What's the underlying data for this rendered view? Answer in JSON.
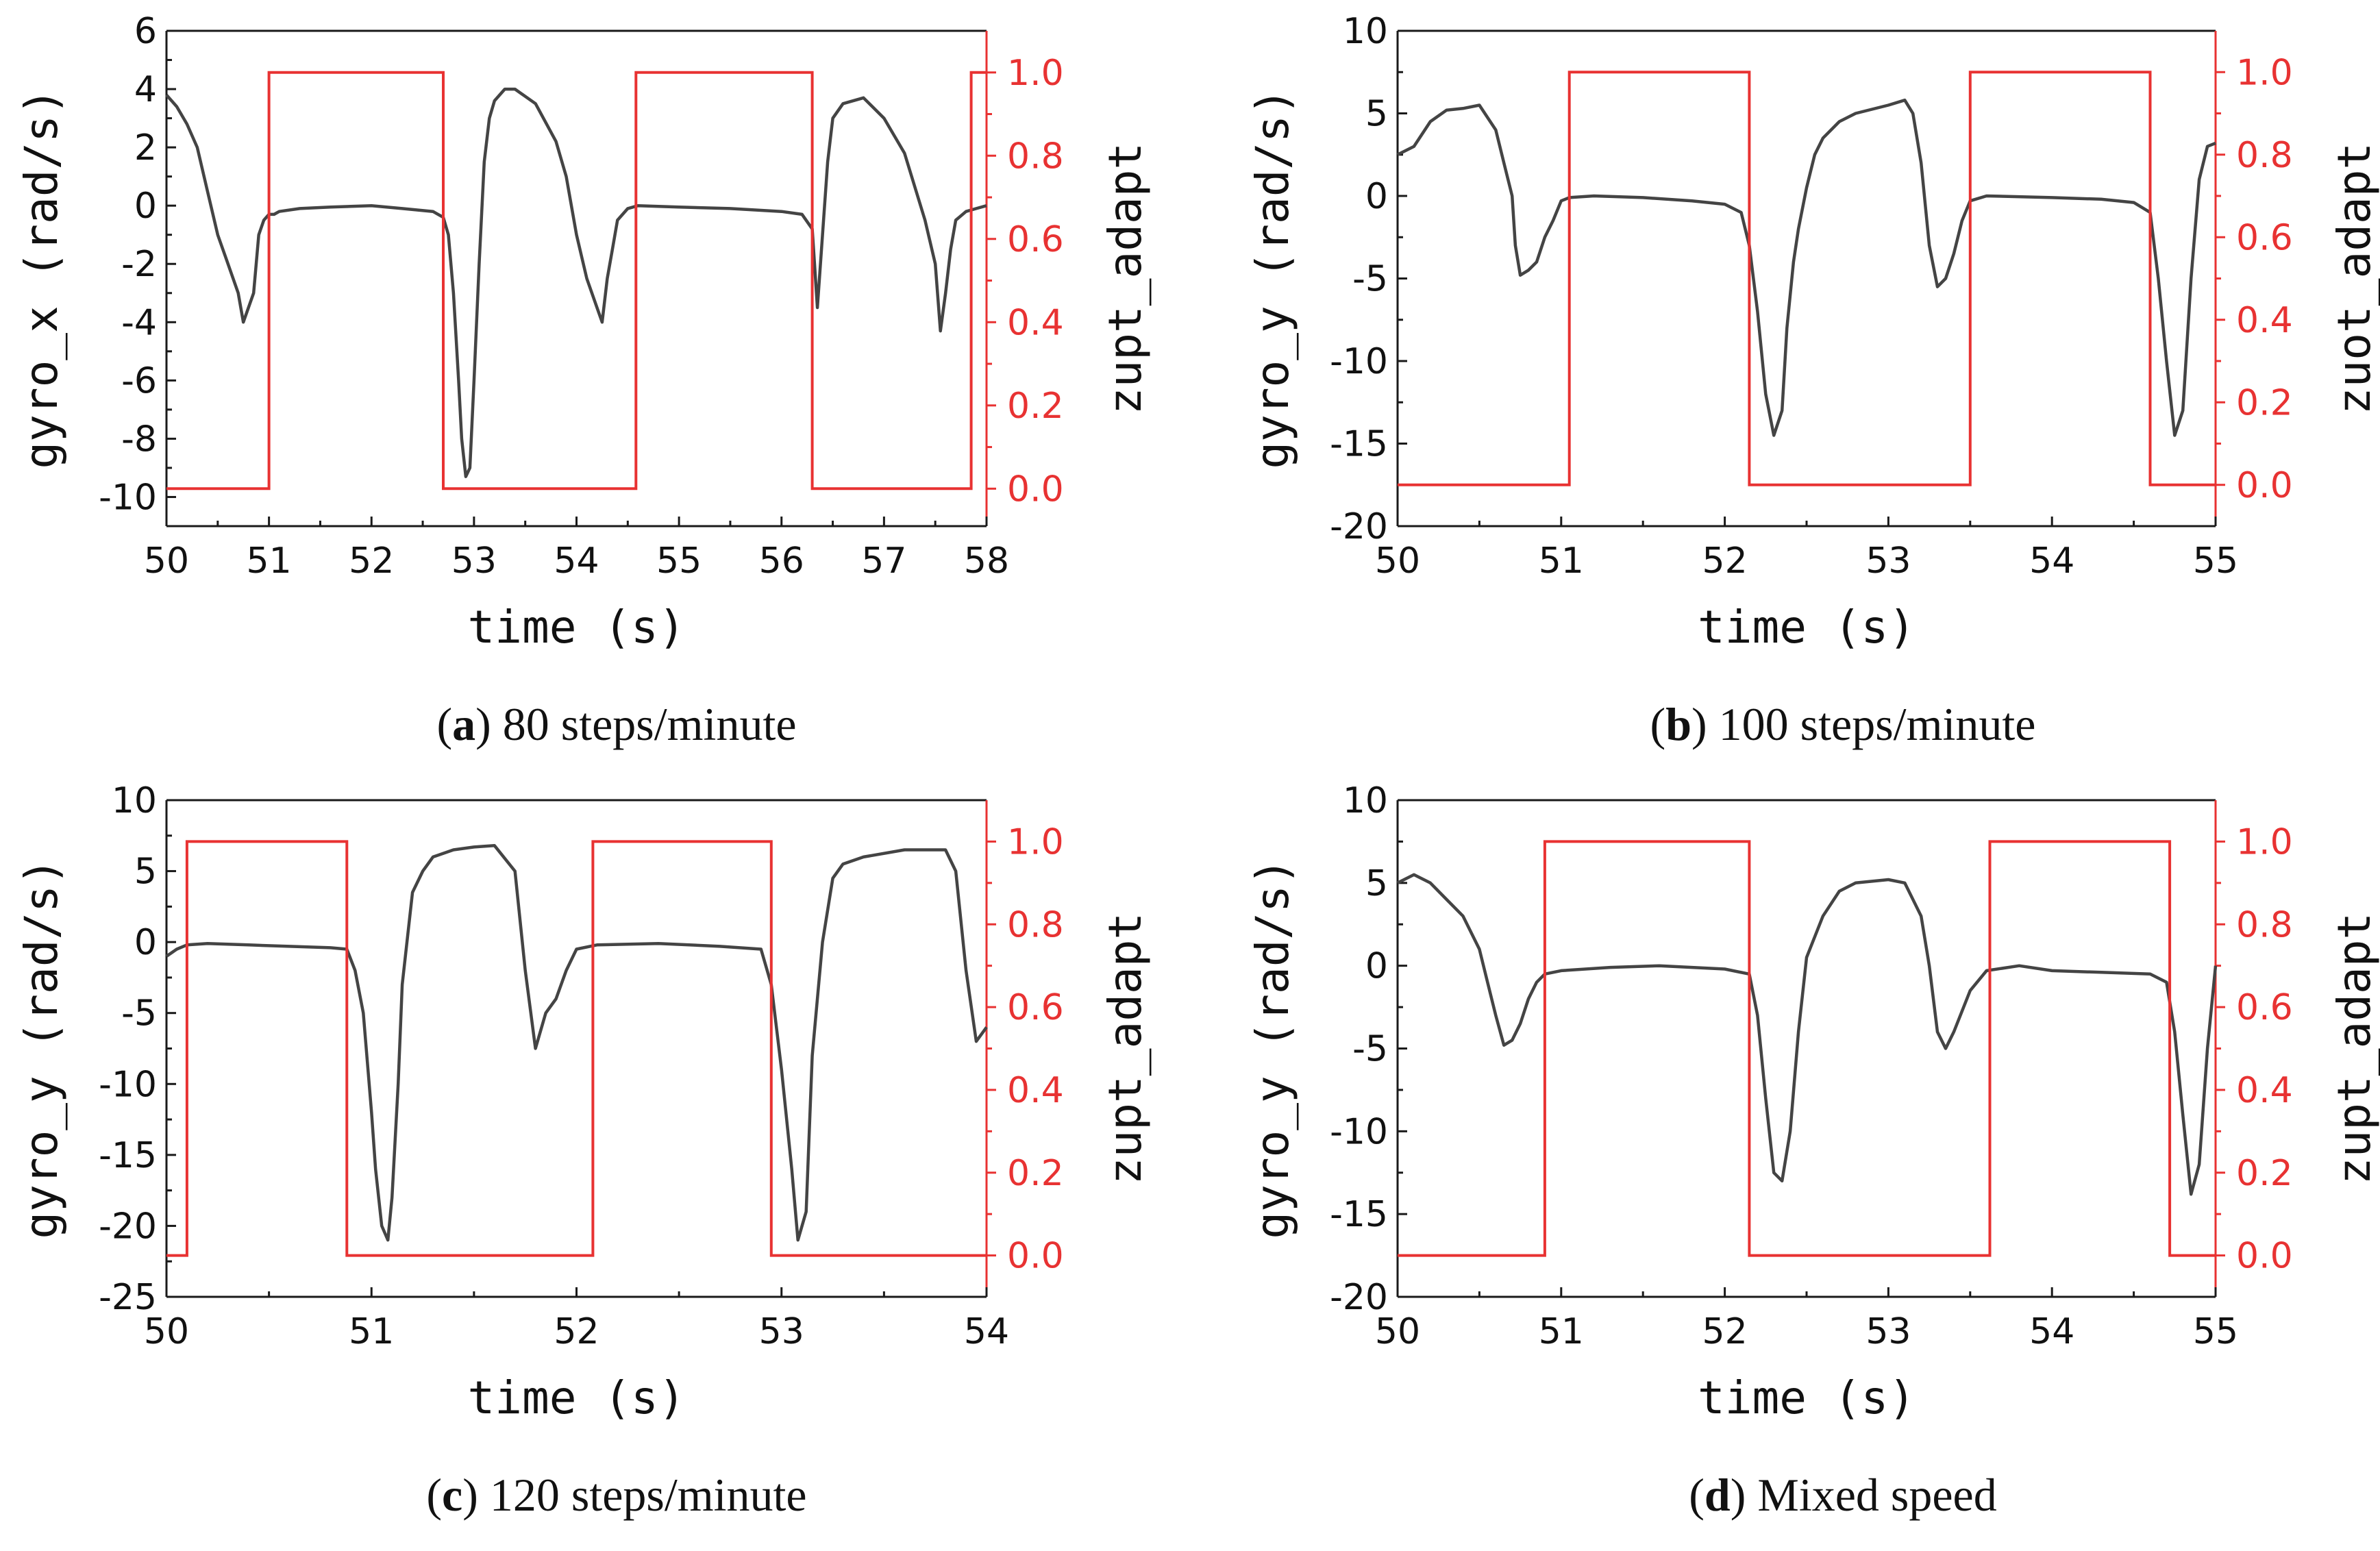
{
  "colors": {
    "gyro": "#444444",
    "zupt": "#e83232",
    "axis": "#1a1a1a"
  },
  "chart_data": [
    {
      "id": "a",
      "type": "line",
      "caption_letter": "a",
      "caption_text": "80 steps/minute",
      "xlabel": "time (s)",
      "ylabel_left": "gyro_x (rad/s)",
      "ylabel_right": "zupt_adapt",
      "xlim": [
        50,
        58
      ],
      "ylim_left": [
        -11,
        6
      ],
      "ylim_right": [
        -0.09,
        1.1
      ],
      "xticks": [
        50,
        51,
        52,
        53,
        54,
        55,
        56,
        57,
        58
      ],
      "yticks_left": [
        6,
        4,
        2,
        0,
        -2,
        -4,
        -6,
        -8,
        -10
      ],
      "yticks_right": [
        0.0,
        0.2,
        0.4,
        0.6,
        0.8,
        1.0
      ],
      "yticks_right_labels": [
        "0.0",
        "0.2",
        "0.4",
        "0.6",
        "0.8",
        "1.0"
      ],
      "series": [
        {
          "name": "gyro_x",
          "axis": "left",
          "x": [
            50.0,
            50.1,
            50.2,
            50.3,
            50.4,
            50.5,
            50.6,
            50.7,
            50.75,
            50.8,
            50.85,
            50.9,
            50.95,
            51.0,
            51.05,
            51.1,
            51.3,
            51.6,
            52.0,
            52.3,
            52.6,
            52.7,
            52.75,
            52.8,
            52.85,
            52.88,
            52.92,
            52.96,
            53.0,
            53.05,
            53.1,
            53.15,
            53.2,
            53.3,
            53.4,
            53.6,
            53.8,
            53.9,
            54.0,
            54.1,
            54.2,
            54.25,
            54.3,
            54.35,
            54.4,
            54.5,
            54.6,
            55.0,
            55.5,
            56.0,
            56.2,
            56.3,
            56.35,
            56.4,
            56.45,
            56.5,
            56.6,
            56.8,
            57.0,
            57.2,
            57.4,
            57.5,
            57.55,
            57.6,
            57.65,
            57.7,
            57.8,
            57.9,
            58.0
          ],
          "y": [
            3.8,
            3.4,
            2.8,
            2.0,
            0.5,
            -1.0,
            -2.0,
            -3.0,
            -4.0,
            -3.5,
            -3.0,
            -1.0,
            -0.5,
            -0.3,
            -0.3,
            -0.2,
            -0.1,
            -0.05,
            0.0,
            -0.1,
            -0.2,
            -0.4,
            -1.0,
            -3.0,
            -6.0,
            -8.0,
            -9.3,
            -9.0,
            -6.0,
            -2.0,
            1.5,
            3.0,
            3.6,
            4.0,
            4.0,
            3.5,
            2.2,
            1.0,
            -1.0,
            -2.5,
            -3.5,
            -4.0,
            -2.5,
            -1.5,
            -0.5,
            -0.1,
            0.0,
            -0.05,
            -0.1,
            -0.2,
            -0.3,
            -0.8,
            -3.5,
            -1.0,
            1.5,
            3.0,
            3.5,
            3.7,
            3.0,
            1.8,
            -0.5,
            -2.0,
            -4.3,
            -3.0,
            -1.5,
            -0.5,
            -0.2,
            -0.1,
            0.0
          ]
        },
        {
          "name": "zupt_adapt",
          "axis": "right",
          "step": true,
          "x": [
            50.0,
            51.0,
            51.0,
            52.7,
            52.7,
            54.58,
            54.58,
            56.3,
            56.3,
            57.85,
            57.85,
            58.0
          ],
          "y": [
            0,
            0,
            1,
            1,
            0,
            0,
            1,
            1,
            0,
            0,
            1,
            1
          ]
        }
      ]
    },
    {
      "id": "b",
      "type": "line",
      "caption_letter": "b",
      "caption_text": "100 steps/minute",
      "xlabel": "time (s)",
      "ylabel_left": "gyro_y (rad/s)",
      "ylabel_right": "zuot_adapt",
      "xlim": [
        50,
        55
      ],
      "ylim_left": [
        -20,
        10
      ],
      "ylim_right": [
        -0.1,
        1.1
      ],
      "xticks": [
        50,
        51,
        52,
        53,
        54,
        55
      ],
      "yticks_left": [
        10,
        5,
        0,
        -5,
        -10,
        -15,
        -20
      ],
      "yticks_right": [
        0.0,
        0.2,
        0.4,
        0.6,
        0.8,
        1.0
      ],
      "yticks_right_labels": [
        "0.0",
        "0.2",
        "0.4",
        "0.6",
        "0.8",
        "1.0"
      ],
      "series": [
        {
          "name": "gyro_y",
          "axis": "left",
          "x": [
            50.0,
            50.1,
            50.2,
            50.3,
            50.4,
            50.5,
            50.6,
            50.65,
            50.7,
            50.72,
            50.75,
            50.8,
            50.85,
            50.9,
            50.95,
            51.0,
            51.05,
            51.2,
            51.5,
            51.8,
            52.0,
            52.1,
            52.15,
            52.2,
            52.25,
            52.3,
            52.35,
            52.38,
            52.42,
            52.45,
            52.5,
            52.55,
            52.6,
            52.7,
            52.8,
            53.0,
            53.1,
            53.15,
            53.2,
            53.25,
            53.3,
            53.35,
            53.4,
            53.45,
            53.5,
            53.6,
            54.0,
            54.3,
            54.5,
            54.6,
            54.65,
            54.7,
            54.75,
            54.8,
            54.85,
            54.9,
            54.95,
            55.0
          ],
          "y": [
            2.5,
            3.0,
            4.5,
            5.2,
            5.3,
            5.5,
            4.0,
            2.0,
            0.0,
            -3.0,
            -4.8,
            -4.5,
            -4.0,
            -2.5,
            -1.5,
            -0.3,
            -0.1,
            0.0,
            -0.1,
            -0.3,
            -0.5,
            -1.0,
            -3.0,
            -7.0,
            -12.0,
            -14.5,
            -13.0,
            -8.0,
            -4.0,
            -2.0,
            0.5,
            2.5,
            3.5,
            4.5,
            5.0,
            5.5,
            5.8,
            5.0,
            2.0,
            -3.0,
            -5.5,
            -5.0,
            -3.5,
            -1.5,
            -0.3,
            0.0,
            -0.1,
            -0.2,
            -0.4,
            -1.0,
            -5.0,
            -10.0,
            -14.5,
            -13.0,
            -5.0,
            1.0,
            3.0,
            3.2
          ]
        },
        {
          "name": "zuot_adapt",
          "axis": "right",
          "step": true,
          "x": [
            50.0,
            51.05,
            51.05,
            52.15,
            52.15,
            53.5,
            53.5,
            54.6,
            54.6,
            55.0
          ],
          "y": [
            0,
            0,
            1,
            1,
            0,
            0,
            1,
            1,
            0,
            0
          ]
        }
      ]
    },
    {
      "id": "c",
      "type": "line",
      "caption_letter": "c",
      "caption_text": "120 steps/minute",
      "xlabel": "time (s)",
      "ylabel_left": "gyro_y (rad/s)",
      "ylabel_right": "zupt_adapt",
      "xlim": [
        50,
        54
      ],
      "ylim_left": [
        -25,
        10
      ],
      "ylim_right": [
        -0.1,
        1.1
      ],
      "xticks": [
        50,
        51,
        52,
        53,
        54
      ],
      "yticks_left": [
        10,
        5,
        0,
        -5,
        -10,
        -15,
        -20,
        -25
      ],
      "yticks_right": [
        0.0,
        0.2,
        0.4,
        0.6,
        0.8,
        1.0
      ],
      "yticks_right_labels": [
        "0.0",
        "0.2",
        "0.4",
        "0.6",
        "0.8",
        "1.0"
      ],
      "series": [
        {
          "name": "gyro_y",
          "axis": "left",
          "x": [
            50.0,
            50.05,
            50.1,
            50.2,
            50.4,
            50.6,
            50.8,
            50.88,
            50.92,
            50.96,
            51.0,
            51.02,
            51.05,
            51.08,
            51.1,
            51.13,
            51.15,
            51.2,
            51.25,
            51.3,
            51.4,
            51.5,
            51.6,
            51.7,
            51.75,
            51.8,
            51.85,
            51.9,
            51.95,
            52.0,
            52.1,
            52.4,
            52.7,
            52.9,
            52.95,
            53.0,
            53.05,
            53.08,
            53.12,
            53.15,
            53.2,
            53.25,
            53.3,
            53.4,
            53.6,
            53.8,
            53.85,
            53.9,
            53.95,
            54.0
          ],
          "y": [
            -1.0,
            -0.5,
            -0.2,
            -0.1,
            -0.2,
            -0.3,
            -0.4,
            -0.5,
            -2.0,
            -5.0,
            -12.0,
            -16.0,
            -20.0,
            -21.0,
            -18.0,
            -10.0,
            -3.0,
            3.5,
            5.0,
            6.0,
            6.5,
            6.7,
            6.8,
            5.0,
            -2.0,
            -7.5,
            -5.0,
            -4.0,
            -2.0,
            -0.5,
            -0.2,
            -0.1,
            -0.3,
            -0.5,
            -3.0,
            -9.0,
            -16.0,
            -21.0,
            -19.0,
            -8.0,
            0.0,
            4.5,
            5.5,
            6.0,
            6.5,
            6.5,
            5.0,
            -2.0,
            -7.0,
            -6.0
          ]
        },
        {
          "name": "zupt_adapt",
          "axis": "right",
          "step": true,
          "x": [
            50.0,
            50.1,
            50.1,
            50.88,
            50.88,
            52.08,
            52.08,
            52.95,
            52.95,
            54.0
          ],
          "y": [
            0,
            0,
            1,
            1,
            0,
            0,
            1,
            1,
            0,
            0
          ]
        }
      ]
    },
    {
      "id": "d",
      "type": "line",
      "caption_letter": "d",
      "caption_text": "Mixed speed",
      "xlabel": "time (s)",
      "ylabel_left": "gyro_y (rad/s)",
      "ylabel_right": "zupt_adapt",
      "xlim": [
        50,
        55
      ],
      "ylim_left": [
        -20,
        10
      ],
      "ylim_right": [
        -0.1,
        1.1
      ],
      "xticks": [
        50,
        51,
        52,
        53,
        54,
        55
      ],
      "yticks_left": [
        10,
        5,
        0,
        -5,
        -10,
        -15,
        -20
      ],
      "yticks_right": [
        0.0,
        0.2,
        0.4,
        0.6,
        0.8,
        1.0
      ],
      "yticks_right_labels": [
        "0.0",
        "0.2",
        "0.4",
        "0.6",
        "0.8",
        "1.0"
      ],
      "series": [
        {
          "name": "gyro_y",
          "axis": "left",
          "x": [
            50.0,
            50.1,
            50.2,
            50.3,
            50.4,
            50.5,
            50.55,
            50.6,
            50.65,
            50.7,
            50.75,
            50.8,
            50.85,
            50.9,
            51.0,
            51.3,
            51.6,
            52.0,
            52.15,
            52.2,
            52.25,
            52.3,
            52.35,
            52.4,
            52.45,
            52.5,
            52.6,
            52.7,
            52.8,
            53.0,
            53.1,
            53.2,
            53.25,
            53.3,
            53.35,
            53.4,
            53.5,
            53.6,
            53.8,
            54.0,
            54.3,
            54.6,
            54.7,
            54.75,
            54.8,
            54.85,
            54.9,
            54.95,
            55.0
          ],
          "y": [
            5.0,
            5.5,
            5.0,
            4.0,
            3.0,
            1.0,
            -1.0,
            -3.0,
            -4.8,
            -4.5,
            -3.5,
            -2.0,
            -1.0,
            -0.5,
            -0.3,
            -0.1,
            0.0,
            -0.2,
            -0.5,
            -3.0,
            -8.0,
            -12.5,
            -13.0,
            -10.0,
            -4.0,
            0.5,
            3.0,
            4.5,
            5.0,
            5.2,
            5.0,
            3.0,
            0.0,
            -4.0,
            -5.0,
            -4.0,
            -1.5,
            -0.3,
            0.0,
            -0.3,
            -0.4,
            -0.5,
            -1.0,
            -4.0,
            -9.0,
            -13.8,
            -12.0,
            -5.0,
            0.0
          ]
        },
        {
          "name": "zupt_adapt",
          "axis": "right",
          "step": true,
          "x": [
            50.0,
            50.9,
            50.9,
            52.15,
            52.15,
            53.62,
            53.62,
            54.72,
            54.72,
            55.0
          ],
          "y": [
            0,
            0,
            1,
            1,
            0,
            0,
            1,
            1,
            0,
            0
          ]
        }
      ]
    }
  ]
}
